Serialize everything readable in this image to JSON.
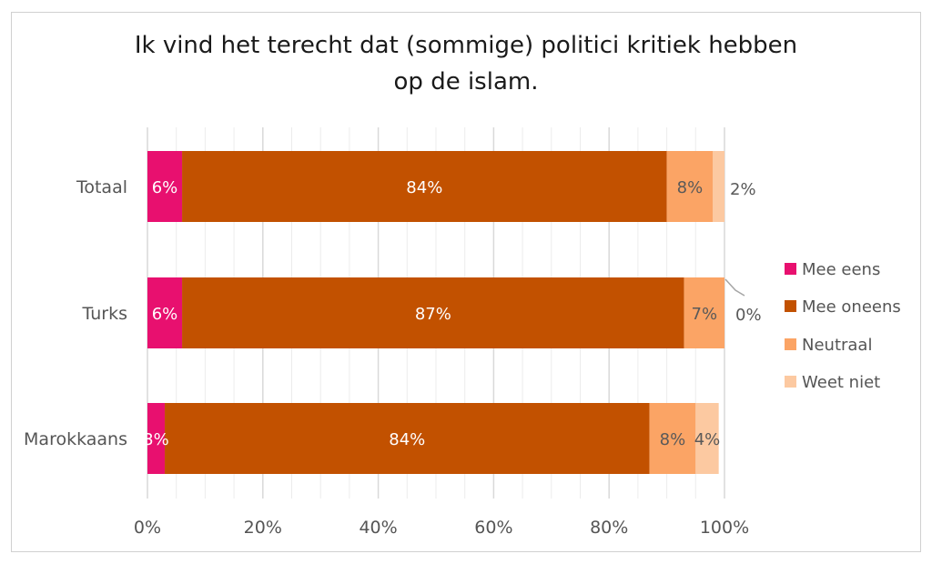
{
  "chart_data": {
    "type": "bar",
    "orientation": "horizontal",
    "stacked": true,
    "title_lines": [
      "Ik vind het terecht dat (sommige) politici kritiek hebben",
      "op de islam."
    ],
    "categories": [
      "Totaal",
      "Turks",
      "Marokkaans"
    ],
    "series": [
      {
        "name": "Mee eens",
        "color": "#e8106f",
        "values": [
          6,
          6,
          3
        ],
        "labels": [
          "6%",
          "6%",
          "3%"
        ]
      },
      {
        "name": "Mee oneens",
        "color": "#c25100",
        "values": [
          84,
          87,
          84
        ],
        "labels": [
          "84%",
          "87%",
          "84%"
        ]
      },
      {
        "name": "Neutraal",
        "color": "#fba465",
        "values": [
          8,
          7,
          8
        ],
        "labels": [
          "8%",
          "7%",
          "8%"
        ]
      },
      {
        "name": "Weet niet",
        "color": "#fcc9a1",
        "values": [
          2,
          0,
          4
        ],
        "labels": [
          "2%",
          "0%",
          "4%"
        ]
      }
    ],
    "xlim": [
      0,
      100
    ],
    "x_ticks": [
      "0%",
      "20%",
      "40%",
      "60%",
      "80%",
      "100%"
    ],
    "grid": true,
    "legend_position": "right"
  }
}
